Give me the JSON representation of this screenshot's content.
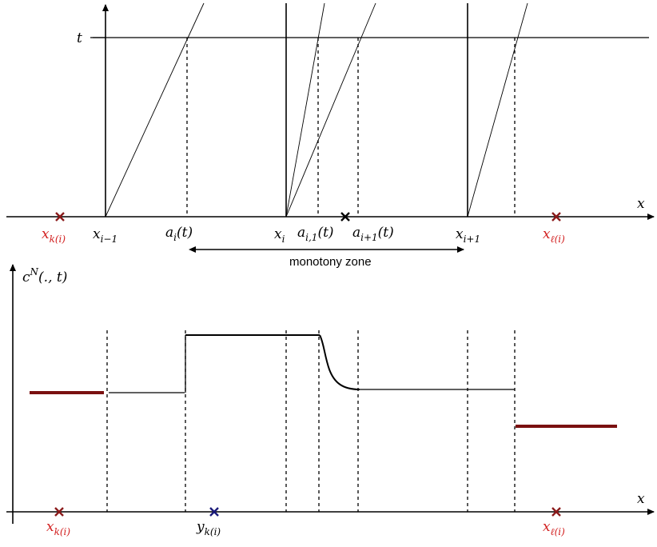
{
  "top_panel": {
    "axis_x_label": "x",
    "axis_t_label": "t",
    "point_labels": [
      {
        "base": "x",
        "sub": "k(i)",
        "color": "#d22020"
      },
      {
        "base": "x",
        "sub": "i−1",
        "color": "#000000"
      },
      {
        "base": "a",
        "sub": "i",
        "tail": "(t)",
        "color": "#000000"
      },
      {
        "base": "x",
        "sub": "i",
        "color": "#000000"
      },
      {
        "base": "a",
        "sub": "i,1",
        "tail": "(t)",
        "color": "#000000"
      },
      {
        "base": "a",
        "sub": "i+1",
        "tail": "(t)",
        "color": "#000000"
      },
      {
        "base": "x",
        "sub": "i+1",
        "color": "#000000"
      },
      {
        "base": "x",
        "sub": "ℓ(i)",
        "color": "#d22020"
      }
    ],
    "zone_label": "monotony zone"
  },
  "bottom_panel": {
    "axis_y_label": {
      "base": "c",
      "sup": "N",
      "tail": "(., t)"
    },
    "axis_x_label": "x",
    "point_labels": [
      {
        "base": "x",
        "sub": "k(i)",
        "color": "#d22020"
      },
      {
        "base": "y",
        "sub": "k(i)",
        "color": "#000000"
      },
      {
        "base": "x",
        "sub": "ℓ(i)",
        "color": "#d22020"
      }
    ]
  },
  "colors": {
    "boundary_marker": "#8b1a1a",
    "boundary_label": "#d22020",
    "y_marker": "#1a1a7a",
    "boundary_state": "#7a1010",
    "line": "#000000"
  }
}
